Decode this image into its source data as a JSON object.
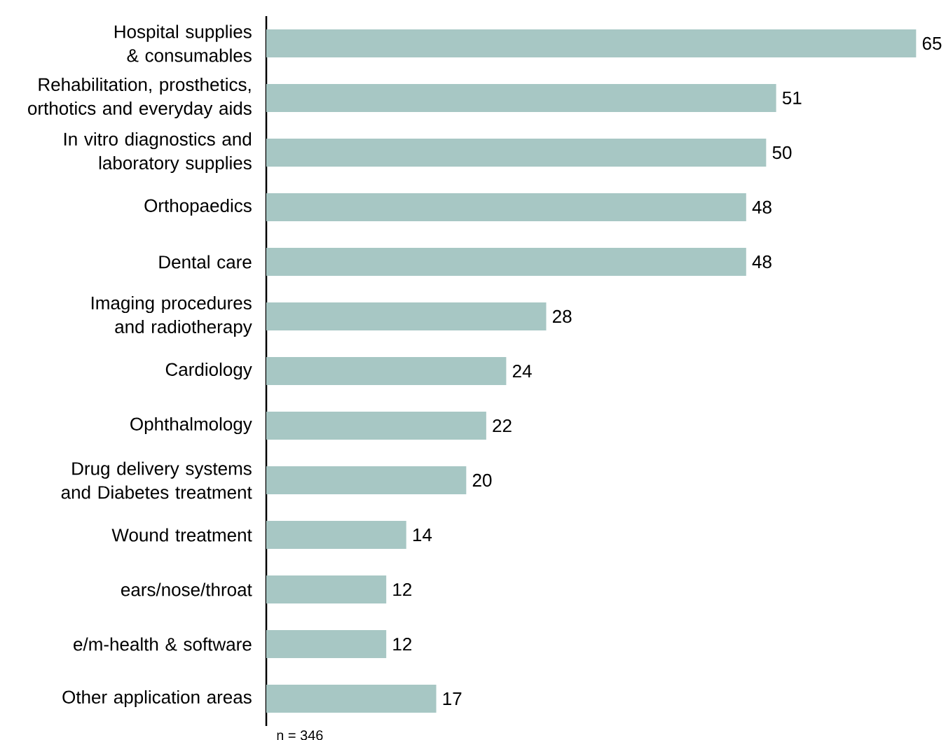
{
  "chart_data": {
    "type": "bar",
    "orientation": "horizontal",
    "color": "#a7c7c4",
    "data_labels": true,
    "categories": [
      "Hospital supplies & consumables",
      "Rehabilitation, prosthetics, orthotics and everyday aids",
      "In vitro diagnostics and laboratory supplies",
      "Orthopaedics",
      "Dental care",
      "Imaging procedures and radiotherapy",
      "Cardiology",
      "Ophthalmology",
      "Drug delivery systems and Diabetes treatment",
      "Wound treatment",
      "ears/nose/throat",
      "e/m-health & software",
      "Other application areas"
    ],
    "values": [
      65,
      51,
      50,
      48,
      48,
      28,
      24,
      22,
      20,
      14,
      12,
      12,
      17
    ],
    "annotations": [
      "n = 346"
    ]
  }
}
